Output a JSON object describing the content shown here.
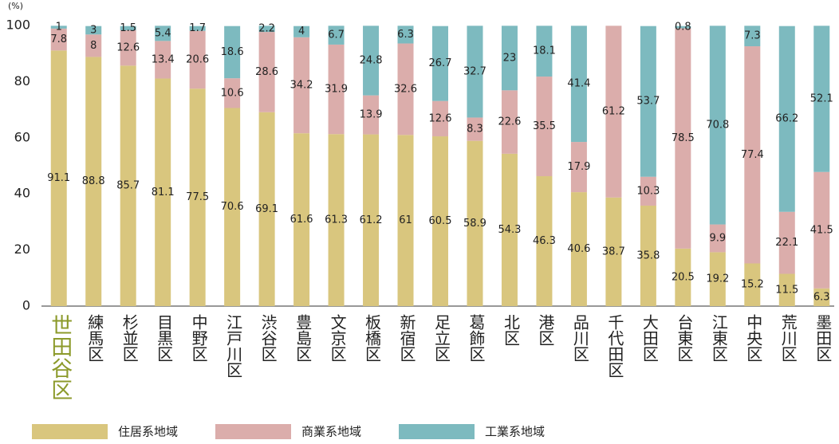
{
  "chart_data": {
    "type": "stacked_bar",
    "y_unit": "(%)",
    "categories": [
      "世田谷区",
      "練馬区",
      "杉並区",
      "目黒区",
      "中野区",
      "江戸川区",
      "渋谷区",
      "豊島区",
      "文京区",
      "板橋区",
      "新宿区",
      "足立区",
      "葛飾区",
      "北区",
      "港区",
      "品川区",
      "千代田区",
      "大田区",
      "台東区",
      "江東区",
      "中央区",
      "荒川区",
      "墨田区"
    ],
    "series": [
      {
        "name": "住居系地域",
        "color": "#d9c67e",
        "values": [
          91.1,
          88.8,
          85.7,
          81.1,
          77.5,
          70.6,
          69.1,
          61.6,
          61.3,
          61.2,
          61,
          60.5,
          58.9,
          54.3,
          46.3,
          40.6,
          38.7,
          35.8,
          20.5,
          19.2,
          15.2,
          11.5,
          6.3
        ]
      },
      {
        "name": "商業系地域",
        "color": "#dbadab",
        "values": [
          7.8,
          8,
          12.6,
          13.4,
          20.6,
          10.6,
          28.6,
          34.2,
          31.9,
          13.9,
          32.6,
          12.6,
          8.3,
          22.6,
          35.5,
          17.9,
          61.2,
          10.3,
          78.5,
          9.9,
          77.4,
          22.1,
          41.5
        ]
      },
      {
        "name": "工業系地域",
        "color": "#7dbabf",
        "values": [
          1,
          3,
          1.5,
          5.4,
          1.7,
          18.6,
          2.2,
          4,
          6.7,
          24.8,
          6.3,
          26.7,
          32.7,
          23,
          18.1,
          41.4,
          null,
          53.7,
          0.8,
          70.8,
          7.3,
          66.2,
          52.1
        ]
      }
    ],
    "ylim": [
      0,
      100
    ],
    "yticks": [
      0,
      20,
      40,
      60,
      80,
      100
    ],
    "grid": false,
    "highlight_index": 0,
    "highlight_color": "#8c9a2b",
    "legend": "bottom"
  }
}
